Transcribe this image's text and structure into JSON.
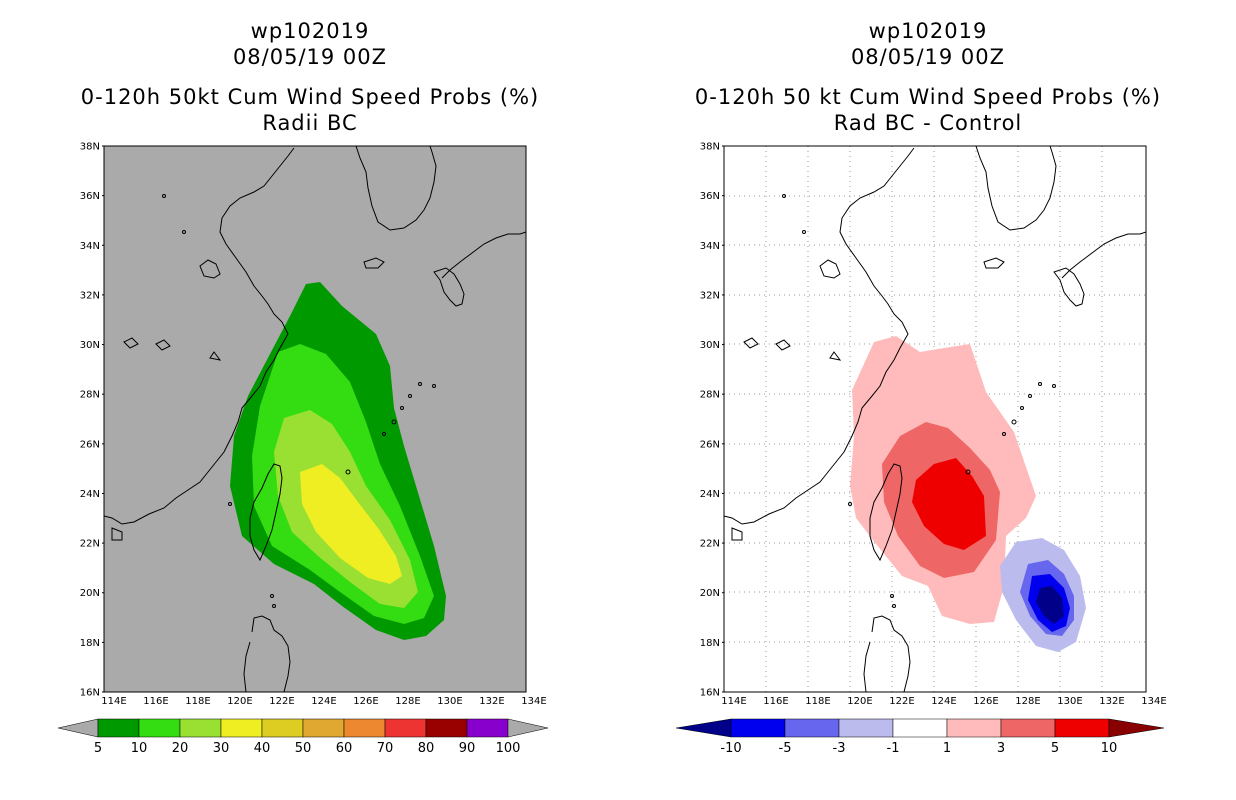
{
  "left_panel": {
    "line1": "wp102019",
    "line2": "08/05/19 00Z",
    "line3": "0-120h 50kt Cum Wind Speed Probs (%)",
    "line4": "Radii BC",
    "colorbar": {
      "labels": [
        "5",
        "10",
        "20",
        "30",
        "40",
        "50",
        "60",
        "70",
        "80",
        "90",
        "100"
      ],
      "colors": [
        "#009900",
        "#33dd11",
        "#99e033",
        "#eeee22",
        "#ddcc22",
        "#e0a830",
        "#ee8830",
        "#ee3333",
        "#990000",
        "#8800cc"
      ],
      "low_arrow_color": "#aaaaaa",
      "high_arrow_color": "#aaaaaa"
    }
  },
  "right_panel": {
    "line1": "wp102019",
    "line2": "08/05/19 00Z",
    "line3": "0-120h 50 kt Cum Wind Speed Probs (%)",
    "line4": "Rad BC - Control",
    "colorbar": {
      "labels": [
        "-10",
        "-5",
        "-3",
        "-1",
        "1",
        "3",
        "5",
        "10"
      ],
      "colors": [
        "#0000ee",
        "#6666ee",
        "#bbbbee",
        "#ffffff",
        "#ffbbbb",
        "#ee6666",
        "#ee0000"
      ],
      "low_arrow_color": "#000088",
      "high_arrow_color": "#880000"
    }
  },
  "axes": {
    "lat_labels": [
      "38N",
      "36N",
      "34N",
      "32N",
      "30N",
      "28N",
      "26N",
      "24N",
      "22N",
      "20N",
      "18N",
      "16N"
    ],
    "lon_labels": [
      "114E",
      "116E",
      "118E",
      "120E",
      "122E",
      "124E",
      "126E",
      "128E",
      "130E",
      "132E",
      "134E"
    ]
  },
  "colors": {
    "map_background_left": "#aaaaaa",
    "map_background_right": "#ffffff"
  }
}
